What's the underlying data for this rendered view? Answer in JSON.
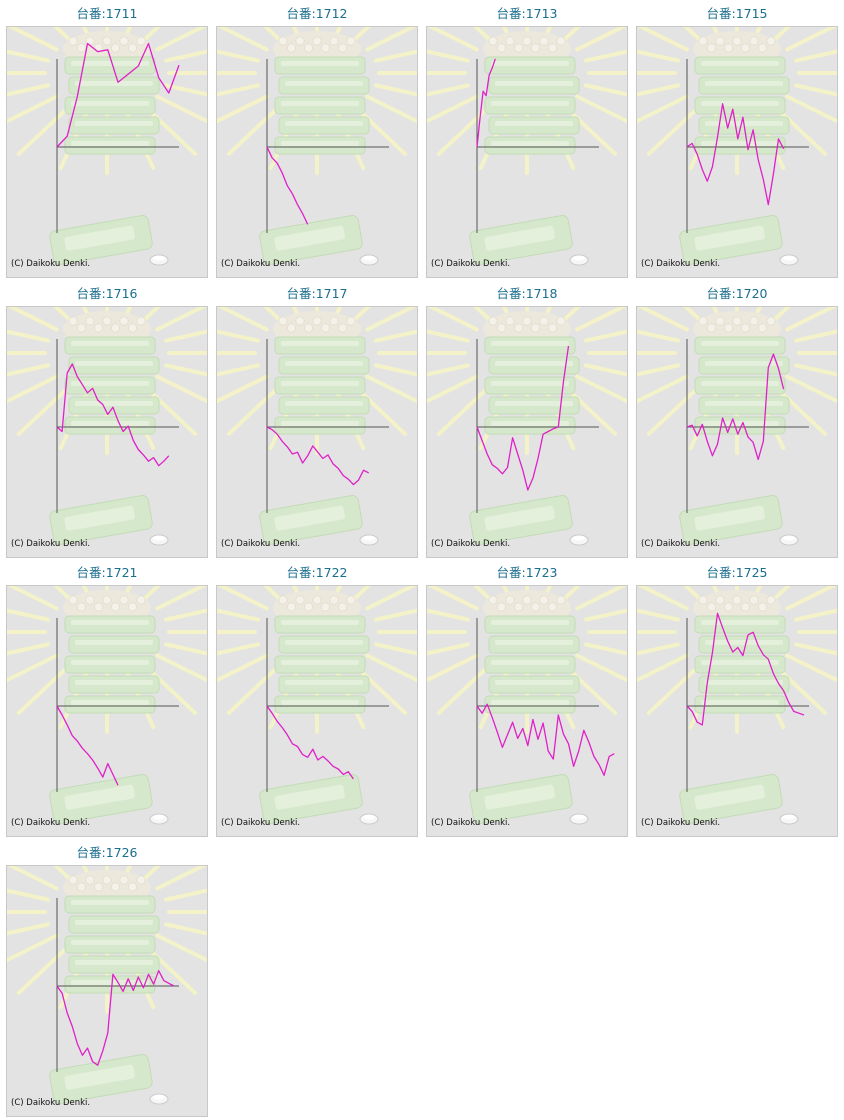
{
  "copyright": "(C) Daikoku Denki.",
  "line_color": "#e020c8",
  "machines": [
    {
      "label": "台番:1711"
    },
    {
      "label": "台番:1712"
    },
    {
      "label": "台番:1713"
    },
    {
      "label": "台番:1715"
    },
    {
      "label": "台番:1716"
    },
    {
      "label": "台番:1717"
    },
    {
      "label": "台番:1718"
    },
    {
      "label": "台番:1720"
    },
    {
      "label": "台番:1721"
    },
    {
      "label": "台番:1722"
    },
    {
      "label": "台番:1723"
    },
    {
      "label": "台番:1725"
    },
    {
      "label": "台番:1726"
    }
  ],
  "chart_data": [
    {
      "type": "line",
      "title": "台番:1711",
      "ylim": [
        -1000,
        1000
      ],
      "x": [
        0,
        2,
        4,
        6,
        8,
        10,
        12,
        14,
        16,
        18,
        20,
        22,
        24
      ],
      "y": [
        0,
        120,
        560,
        1150,
        1060,
        1080,
        720,
        810,
        900,
        1150,
        770,
        600,
        910
      ]
    },
    {
      "type": "line",
      "title": "台番:1712",
      "ylim": [
        -1000,
        1000
      ],
      "x": [
        0,
        1,
        2,
        3,
        4,
        5,
        6,
        7,
        8
      ],
      "y": [
        0,
        -120,
        -180,
        -290,
        -430,
        -520,
        -640,
        -740,
        -860
      ]
    },
    {
      "type": "line",
      "title": "台番:1713",
      "ylim": [
        -1000,
        1000
      ],
      "x": [
        0,
        0.6,
        1.2,
        1.8,
        2.4,
        3.0,
        3.6
      ],
      "y": [
        0,
        320,
        620,
        570,
        800,
        880,
        980
      ]
    },
    {
      "type": "line",
      "title": "台番:1715",
      "ylim": [
        -1000,
        1000
      ],
      "x": [
        0,
        1,
        2,
        3,
        4,
        5,
        6,
        7,
        8,
        9,
        10,
        11,
        12,
        13,
        14,
        15,
        16,
        17,
        18,
        19
      ],
      "y": [
        0,
        40,
        -80,
        -250,
        -380,
        -220,
        110,
        480,
        210,
        420,
        90,
        330,
        -30,
        190,
        -140,
        -360,
        -640,
        -300,
        90,
        -20
      ]
    },
    {
      "type": "line",
      "title": "台番:1716",
      "ylim": [
        -1000,
        1000
      ],
      "x": [
        0,
        1,
        2,
        3,
        4,
        5,
        6,
        7,
        8,
        9,
        10,
        11,
        12,
        13,
        14,
        15,
        16,
        17,
        18,
        19,
        20,
        21,
        22
      ],
      "y": [
        0,
        -50,
        600,
        700,
        560,
        470,
        380,
        430,
        300,
        250,
        140,
        220,
        70,
        -50,
        10,
        -150,
        -250,
        -310,
        -380,
        -340,
        -430,
        -380,
        -320
      ]
    },
    {
      "type": "line",
      "title": "台番:1717",
      "ylim": [
        -1000,
        1000
      ],
      "x": [
        0,
        1,
        2,
        3,
        4,
        5,
        6,
        7,
        8,
        9,
        10,
        11,
        12,
        13,
        14,
        15,
        16,
        17,
        18,
        19,
        20
      ],
      "y": [
        0,
        -30,
        -80,
        -160,
        -220,
        -300,
        -280,
        -400,
        -320,
        -210,
        -280,
        -350,
        -310,
        -410,
        -460,
        -540,
        -580,
        -640,
        -590,
        -480,
        -510
      ]
    },
    {
      "type": "line",
      "title": "台番:1718",
      "ylim": [
        -1000,
        1000
      ],
      "x": [
        0,
        1,
        2,
        3,
        4,
        5,
        6,
        7,
        8,
        9,
        10,
        11,
        12,
        13,
        14,
        15,
        16,
        17,
        18
      ],
      "y": [
        0,
        -150,
        -300,
        -420,
        -460,
        -520,
        -450,
        -120,
        -300,
        -480,
        -700,
        -570,
        -350,
        -80,
        -50,
        -20,
        0,
        500,
        900
      ]
    },
    {
      "type": "line",
      "title": "台番:1720",
      "ylim": [
        -1000,
        1000
      ],
      "x": [
        0,
        1,
        2,
        3,
        4,
        5,
        6,
        7,
        8,
        9,
        10,
        11,
        12,
        13,
        14,
        15,
        16,
        17,
        18,
        19
      ],
      "y": [
        0,
        20,
        -100,
        30,
        -160,
        -320,
        -190,
        100,
        -60,
        90,
        -80,
        50,
        -110,
        -170,
        -360,
        -160,
        660,
        810,
        650,
        420
      ]
    },
    {
      "type": "line",
      "title": "台番:1721",
      "ylim": [
        -1000,
        1000
      ],
      "x": [
        0,
        1,
        2,
        3,
        4,
        5,
        6,
        7,
        8,
        9,
        10,
        11,
        12
      ],
      "y": [
        0,
        -100,
        -210,
        -330,
        -390,
        -470,
        -530,
        -600,
        -690,
        -790,
        -640,
        -760,
        -880
      ]
    },
    {
      "type": "line",
      "title": "台番:1722",
      "ylim": [
        -1000,
        1000
      ],
      "x": [
        0,
        1,
        2,
        3,
        4,
        5,
        6,
        7,
        8,
        9,
        10,
        11,
        12,
        13,
        14,
        15,
        16,
        17
      ],
      "y": [
        0,
        -80,
        -170,
        -240,
        -320,
        -420,
        -450,
        -540,
        -570,
        -480,
        -600,
        -560,
        -610,
        -670,
        -700,
        -760,
        -730,
        -810
      ]
    },
    {
      "type": "line",
      "title": "台番:1723",
      "ylim": [
        -1000,
        1000
      ],
      "x": [
        0,
        1,
        2,
        3,
        4,
        5,
        6,
        7,
        8,
        9,
        10,
        11,
        12,
        13,
        14,
        15,
        16,
        17,
        18,
        19,
        20,
        21,
        22,
        23,
        24,
        25,
        26,
        27
      ],
      "y": [
        0,
        -80,
        20,
        -130,
        -290,
        -460,
        -320,
        -180,
        -360,
        -250,
        -440,
        -150,
        -370,
        -190,
        -500,
        -590,
        -100,
        -310,
        -420,
        -670,
        -500,
        -270,
        -400,
        -560,
        -650,
        -770,
        -560,
        -530
      ]
    },
    {
      "type": "line",
      "title": "台番:1725",
      "ylim": [
        -1000,
        1000
      ],
      "x": [
        0,
        1,
        2,
        3,
        4,
        5,
        6,
        7,
        8,
        9,
        10,
        11,
        12,
        13,
        14,
        15,
        16,
        17,
        18,
        19,
        20,
        21,
        22,
        23
      ],
      "y": [
        0,
        -60,
        -180,
        -210,
        260,
        590,
        1030,
        870,
        720,
        600,
        650,
        560,
        790,
        820,
        670,
        570,
        520,
        360,
        250,
        170,
        40,
        -60,
        -80,
        -100
      ]
    },
    {
      "type": "line",
      "title": "台番:1726",
      "ylim": [
        -1000,
        1000
      ],
      "x": [
        0,
        1,
        2,
        3,
        4,
        5,
        6,
        7,
        8,
        9,
        10,
        11,
        12,
        13,
        14,
        15,
        16,
        17,
        18,
        19,
        20,
        21,
        22,
        23
      ],
      "y": [
        0,
        -80,
        -300,
        -450,
        -640,
        -770,
        -690,
        -840,
        -880,
        -720,
        -520,
        130,
        40,
        -60,
        80,
        -50,
        100,
        -20,
        130,
        20,
        170,
        60,
        30,
        0
      ]
    }
  ]
}
